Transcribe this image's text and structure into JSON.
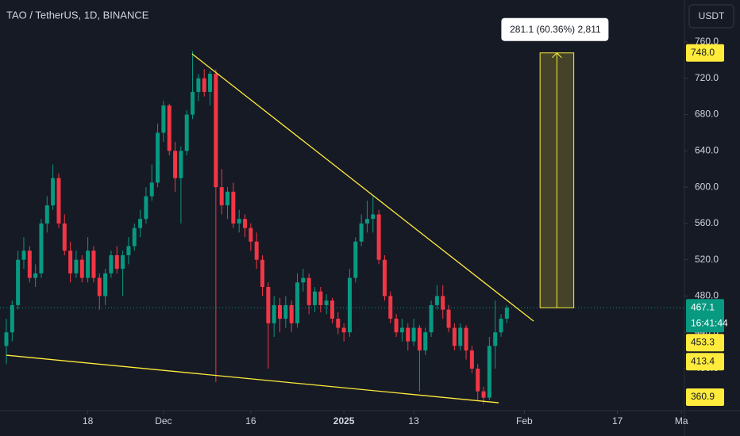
{
  "header": {
    "title": "TAO / TetherUS, 1D, BINANCE",
    "currency_button": "USDT"
  },
  "chart_data": {
    "type": "candlestick",
    "up_color": "#089981",
    "down_color": "#f23645",
    "open": [
      425,
      440,
      470,
      520,
      530,
      500,
      505,
      560,
      580,
      610,
      560,
      530,
      505,
      520,
      500,
      530,
      500,
      480,
      505,
      525,
      510,
      525,
      535,
      555,
      565,
      590,
      605,
      660,
      690,
      640,
      610,
      640,
      680,
      705,
      720,
      705,
      725,
      600,
      580,
      595,
      560,
      565,
      555,
      540,
      520,
      490,
      450,
      470,
      455,
      470,
      450,
      495,
      500,
      470,
      485,
      470,
      475,
      455,
      445,
      440,
      500,
      540,
      560,
      565,
      570,
      520,
      480,
      455,
      440,
      445,
      430,
      445,
      420,
      440,
      470,
      480,
      465,
      445,
      425,
      445,
      420,
      400,
      375,
      368,
      425,
      440,
      455
    ],
    "high": [
      455,
      475,
      530,
      545,
      535,
      515,
      565,
      590,
      625,
      615,
      570,
      540,
      530,
      525,
      545,
      535,
      505,
      510,
      530,
      535,
      530,
      545,
      560,
      575,
      600,
      625,
      670,
      695,
      692,
      650,
      645,
      685,
      750,
      725,
      730,
      728,
      730,
      620,
      600,
      605,
      575,
      570,
      560,
      550,
      525,
      495,
      480,
      478,
      480,
      475,
      505,
      510,
      505,
      490,
      490,
      482,
      478,
      462,
      450,
      510,
      545,
      570,
      585,
      590,
      575,
      525,
      485,
      460,
      455,
      450,
      455,
      448,
      445,
      475,
      492,
      492,
      470,
      450,
      450,
      448,
      425,
      405,
      380,
      435,
      475,
      460,
      470
    ],
    "low": [
      405,
      430,
      465,
      510,
      495,
      490,
      500,
      550,
      575,
      555,
      525,
      495,
      500,
      495,
      495,
      495,
      465,
      470,
      500,
      505,
      480,
      515,
      530,
      545,
      560,
      585,
      600,
      650,
      635,
      595,
      560,
      635,
      675,
      695,
      700,
      690,
      385,
      570,
      565,
      555,
      550,
      545,
      530,
      510,
      480,
      400,
      435,
      440,
      445,
      440,
      445,
      485,
      460,
      462,
      462,
      460,
      450,
      438,
      430,
      435,
      495,
      535,
      550,
      550,
      515,
      475,
      450,
      435,
      430,
      420,
      425,
      375,
      415,
      435,
      465,
      455,
      440,
      420,
      420,
      410,
      395,
      365,
      361,
      365,
      400,
      435,
      450
    ],
    "close": [
      440,
      470,
      520,
      530,
      500,
      505,
      560,
      580,
      610,
      560,
      530,
      505,
      520,
      500,
      530,
      500,
      480,
      505,
      525,
      510,
      525,
      535,
      555,
      565,
      590,
      605,
      660,
      690,
      640,
      610,
      640,
      680,
      705,
      720,
      705,
      725,
      600,
      580,
      595,
      560,
      565,
      555,
      540,
      520,
      490,
      450,
      470,
      455,
      470,
      450,
      495,
      500,
      470,
      485,
      470,
      475,
      455,
      445,
      440,
      500,
      540,
      560,
      565,
      570,
      520,
      480,
      455,
      440,
      445,
      430,
      445,
      420,
      440,
      470,
      480,
      465,
      445,
      425,
      445,
      420,
      400,
      375,
      368,
      425,
      440,
      455,
      467.1
    ],
    "xlim": [
      -1.09,
      116.51
    ],
    "xticks": [
      {
        "value": 14,
        "label": "18"
      },
      {
        "value": 27,
        "label": "Dec"
      },
      {
        "value": 42,
        "label": "16"
      },
      {
        "value": 58,
        "label": "2025"
      },
      {
        "value": 70,
        "label": "13"
      },
      {
        "value": 89,
        "label": "Feb"
      },
      {
        "value": 105,
        "label": "17"
      },
      {
        "value": 116,
        "label": "Ma"
      }
    ],
    "ylim": [
      353.7,
      806.3
    ],
    "yticks": [
      {
        "value": 400,
        "label": "400.0"
      },
      {
        "value": 440,
        "label": "440.0"
      },
      {
        "value": 480,
        "label": "480.0"
      },
      {
        "value": 520,
        "label": "520.0"
      },
      {
        "value": 560,
        "label": "560.0"
      },
      {
        "value": 600,
        "label": "600.0"
      },
      {
        "value": 640,
        "label": "640.0"
      },
      {
        "value": 680,
        "label": "680.0"
      },
      {
        "value": 720,
        "label": "720.0"
      },
      {
        "value": 760,
        "label": "760.0"
      }
    ],
    "trend_lines": [
      {
        "x": [
          31.9,
          90.6
        ],
        "y": [
          747,
          452.3
        ],
        "color": "#ffeb3b"
      },
      {
        "x": [
          0,
          84.6
        ],
        "y": [
          414.8,
          362.4
        ],
        "color": "#ffeb3b"
      }
    ],
    "measure": {
      "x": [
        91.7,
        97.5
      ],
      "label": "281.1 (60.36%) 2,811",
      "color": "#ffeb3b"
    },
    "price_labels": [
      {
        "value": 748,
        "label": "748.0",
        "color": "#ffeb3b"
      },
      {
        "value": 467.1,
        "label": "467.1",
        "color": "#089981"
      },
      {
        "value": 453.3,
        "label": "453.3",
        "color": "#ffeb3b"
      },
      {
        "value": 413.4,
        "label": "413.4",
        "color": "#ffeb3b"
      },
      {
        "value": 360.9,
        "label": "360.9",
        "color": "#ffeb3b"
      }
    ],
    "countdown": "16:41:44"
  }
}
